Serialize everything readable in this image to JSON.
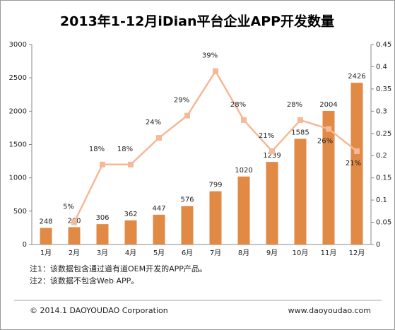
{
  "chart_data": {
    "type": "bar_line",
    "title": "2013年1-12月iDian平台企业APP开发数量",
    "categories": [
      "1月",
      "2月",
      "3月",
      "4月",
      "5月",
      "6月",
      "7月",
      "8月",
      "9月",
      "10月",
      "11月",
      "12月"
    ],
    "series": [
      {
        "type": "bar",
        "color": "#e08a45",
        "values": [
          248,
          260,
          306,
          362,
          447,
          576,
          799,
          1020,
          1239,
          1585,
          2004,
          2426
        ]
      },
      {
        "type": "line",
        "axis": "y2",
        "color": "#f6b896",
        "values": [
          null,
          0.05,
          0.18,
          0.18,
          0.24,
          0.29,
          0.39,
          0.28,
          0.21,
          0.28,
          0.26,
          0.21
        ],
        "value_labels": [
          null,
          "5%",
          "18%",
          "18%",
          "24%",
          "29%",
          "39%",
          "28%",
          "21%",
          "28%",
          "26%",
          "21%"
        ]
      }
    ],
    "ylim": [
      0,
      3000
    ],
    "yticks": [
      0,
      500,
      1000,
      1500,
      2000,
      2500,
      3000
    ],
    "y2lim": [
      0,
      0.45
    ],
    "y2ticks": [
      0,
      0.05,
      0.1,
      0.15,
      0.2,
      0.25,
      0.3,
      0.35,
      0.4,
      0.45
    ],
    "notes": [
      "注1：该数据包含通过道有道OEM开发的APP产品。",
      "注2：该数据不包含Web APP。"
    ],
    "footer_left": "© 2014.1 DAOYOUDAO Corporation",
    "footer_right": "www.daoyoudao.com"
  }
}
